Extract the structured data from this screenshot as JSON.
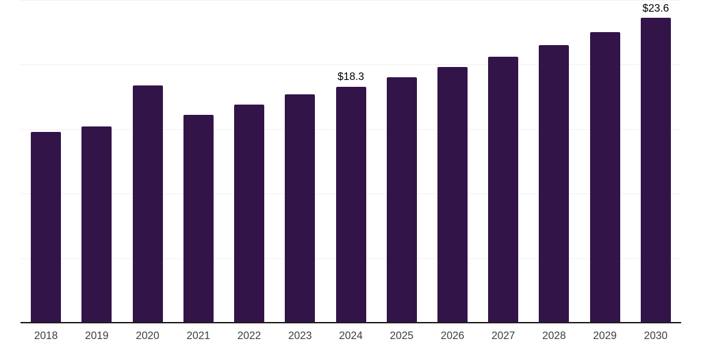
{
  "chart_data": {
    "type": "bar",
    "categories": [
      "2018",
      "2019",
      "2020",
      "2021",
      "2022",
      "2023",
      "2024",
      "2025",
      "2026",
      "2027",
      "2028",
      "2029",
      "2030"
    ],
    "values": [
      14.8,
      15.2,
      18.4,
      16.1,
      16.9,
      17.7,
      18.3,
      19.0,
      19.8,
      20.6,
      21.5,
      22.5,
      23.6
    ],
    "data_labels": [
      {
        "index": 6,
        "text": "$18.3"
      },
      {
        "index": 12,
        "text": "$23.6"
      }
    ],
    "title": "",
    "xlabel": "",
    "ylabel": "",
    "ylim": [
      0,
      25
    ],
    "gridline_step": 5,
    "grid": true,
    "legend_position": "none",
    "colors": {
      "bar": "#331449",
      "axis_line": "#1d1d1d",
      "gridline": "#f1f1f1",
      "value_label": "#000000",
      "tick_label": "#3c3c3c",
      "background": "#ffffff"
    }
  }
}
